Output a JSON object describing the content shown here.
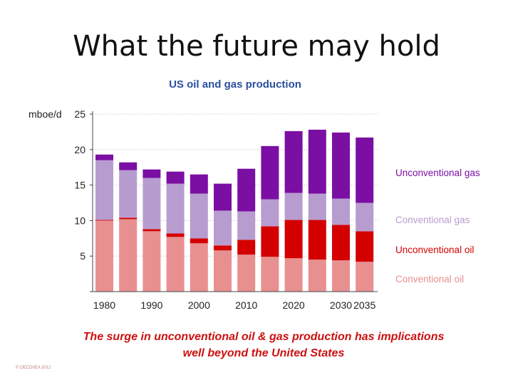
{
  "slide": {
    "title": "What the future may hold",
    "caption_line1": "The surge in unconventional oil & gas production has implications",
    "caption_line2": "well beyond the United States",
    "copyright": "© OECD/IEA 2012"
  },
  "colors": {
    "conventional_oil": "#e89090",
    "unconventional_oil": "#d40000",
    "conventional_gas": "#b79cd0",
    "unconventional_gas": "#7b0fa3",
    "chart_title": "#2a4fa0",
    "caption": "#cc1111",
    "axis": "#444444",
    "grid": "#bbbbbb"
  },
  "chart_data": {
    "type": "bar",
    "stacked": true,
    "title": "US oil and gas production",
    "ylabel": "mboe/d",
    "xlabel": "",
    "ylim": [
      0,
      25
    ],
    "yticks": [
      5,
      10,
      15,
      20,
      25
    ],
    "grid": true,
    "categories": [
      "1980",
      "1985",
      "1990",
      "1995",
      "2000",
      "2005",
      "2010",
      "2015",
      "2020",
      "2025",
      "2030",
      "2035"
    ],
    "tick_labels": [
      "1980",
      "",
      "1990",
      "",
      "2000",
      "",
      "2010",
      "",
      "2020",
      "",
      "2030",
      "2035"
    ],
    "series": [
      {
        "name": "Conventional oil",
        "color_key": "conventional_oil",
        "values": [
          10.0,
          10.2,
          8.5,
          7.7,
          6.8,
          5.8,
          5.2,
          4.9,
          4.7,
          4.5,
          4.4,
          4.2
        ]
      },
      {
        "name": "Unconventional oil",
        "color_key": "unconventional_oil",
        "values": [
          0.1,
          0.2,
          0.3,
          0.5,
          0.7,
          0.7,
          2.1,
          4.3,
          5.4,
          5.6,
          5.0,
          4.3
        ]
      },
      {
        "name": "Conventional gas",
        "color_key": "conventional_gas",
        "values": [
          8.4,
          6.7,
          7.2,
          7.0,
          6.3,
          4.9,
          4.0,
          3.8,
          3.8,
          3.7,
          3.7,
          4.0
        ]
      },
      {
        "name": "Unconventional gas",
        "color_key": "unconventional_gas",
        "values": [
          0.8,
          1.1,
          1.2,
          1.7,
          2.7,
          3.8,
          6.0,
          7.5,
          8.7,
          9.0,
          9.3,
          9.2
        ]
      }
    ],
    "legend_order": [
      "Unconventional gas",
      "Conventional gas",
      "Unconventional oil",
      "Conventional oil"
    ],
    "legend_position": "right"
  }
}
